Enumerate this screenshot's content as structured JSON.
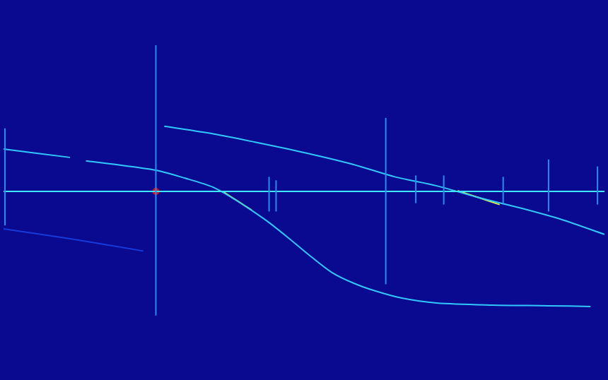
{
  "chart_data": {
    "type": "line",
    "grid": false,
    "tick_labels": false,
    "xlim": [
      0,
      860
    ],
    "ylim": [
      0,
      538
    ],
    "series": [
      {
        "color": "#1a3ad8",
        "line_style": "solid",
        "x": [
          0,
          100,
          200
        ],
        "values": [
          213,
          198,
          181
        ]
      },
      {
        "color": "#2a8af0",
        "line_style": "solid",
        "x": [
          2,
          2
        ],
        "values": [
          358,
          218
        ]
      },
      {
        "color": "#2a8af0",
        "line_style": "solid",
        "x": [
          218,
          218
        ],
        "values": [
          478,
          88
        ]
      },
      {
        "color": "#2a8af0",
        "line_style": "solid",
        "x": [
          380,
          380
        ],
        "values": [
          288,
          238
        ]
      },
      {
        "color": "#2a8af0",
        "line_style": "solid",
        "x": [
          390,
          390
        ],
        "values": [
          283,
          238
        ]
      },
      {
        "color": "#2a8af0",
        "line_style": "solid",
        "x": [
          547,
          547
        ],
        "values": [
          373,
          133
        ]
      },
      {
        "color": "#2a8af0",
        "line_style": "solid",
        "x": [
          590,
          590
        ],
        "values": [
          290,
          250
        ]
      },
      {
        "color": "#2a8af0",
        "line_style": "solid",
        "x": [
          630,
          630
        ],
        "values": [
          290,
          248
        ]
      },
      {
        "color": "#2a8af0",
        "line_style": "solid",
        "x": [
          715,
          715
        ],
        "values": [
          288,
          250
        ]
      },
      {
        "color": "#2a8af0",
        "line_style": "solid",
        "x": [
          780,
          780
        ],
        "values": [
          313,
          238
        ]
      },
      {
        "color": "#2a8af0",
        "line_style": "solid",
        "x": [
          850,
          850
        ],
        "values": [
          303,
          248
        ]
      },
      {
        "color": "#40e8ff",
        "line_style": "solid",
        "x": [
          0,
          860
        ],
        "values": [
          267,
          267
        ]
      },
      {
        "color": "#30c8ff",
        "line_style": "solid",
        "x": [
          0,
          95,
          105,
          118,
          215,
          260,
          300,
          330,
          350,
          380,
          410,
          440,
          470,
          500,
          530,
          570,
          620,
          700,
          780,
          840
        ],
        "values": [
          328,
          316,
          null,
          311,
          298,
          286,
          273,
          256,
          243,
          222,
          198,
          173,
          150,
          135,
          124,
          113,
          106,
          103,
          102,
          101
        ]
      },
      {
        "color": "#30c8ff",
        "line_style": "solid",
        "x": [
          230,
          300,
          360,
          430,
          500,
          560,
          620,
          680,
          740,
          800,
          860
        ],
        "values": [
          361,
          350,
          338,
          323,
          306,
          288,
          275,
          258,
          243,
          226,
          205
        ]
      },
      {
        "color": "#e0f040",
        "line_style": "solid",
        "x": [
          315,
          335,
          355
        ],
        "values": [
          266,
          253,
          240
        ]
      },
      {
        "color": "#e0f040",
        "line_style": "solid",
        "x": [
          650,
          680,
          710
        ],
        "values": [
          268,
          258,
          248
        ]
      },
      {
        "type": "scatter",
        "marker": "circle",
        "color": "#e01010",
        "x": [
          218
        ],
        "values": [
          267
        ]
      }
    ]
  }
}
